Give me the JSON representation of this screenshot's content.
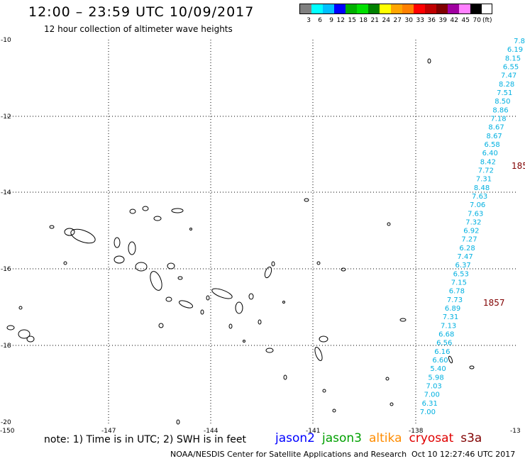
{
  "header": {
    "title": "12:00 – 23:59 UTC 10/09/2017",
    "subtitle": "12 hour collection of altimeter wave heights"
  },
  "legend": {
    "colors": [
      "#808080",
      "#00ffff",
      "#00bfff",
      "#0000ff",
      "#00b000",
      "#00e000",
      "#008000",
      "#ffff00",
      "#ffa500",
      "#ff8000",
      "#ff0000",
      "#c00000",
      "#800000",
      "#a000a0",
      "#ff80ff",
      "#000000"
    ],
    "ticks": [
      "3",
      "6",
      "9",
      "12",
      "15",
      "18",
      "21",
      "24",
      "27",
      "30",
      "33",
      "36",
      "39",
      "42",
      "45",
      "70"
    ],
    "unit": "(ft)"
  },
  "axes": {
    "lat_labels": [
      "-10",
      "-12",
      "-14",
      "-16",
      "-18",
      "-20"
    ],
    "lon_labels": [
      "-150",
      "-147",
      "-144",
      "-141",
      "-138",
      "-13"
    ]
  },
  "track": {
    "satellite": "jason2",
    "color": "#00b0e0",
    "values": [
      "7.8",
      "6.19",
      "8.15",
      "6.55",
      "7.47",
      "8.28",
      "7.51",
      "8.50",
      "8.86",
      "7.18",
      "8.67",
      "8.67",
      "6.58",
      "6.40",
      "8.42",
      "7.72",
      "7.31",
      "8.48",
      "7.63",
      "7.06",
      "7.63",
      "7.32",
      "6.92",
      "7.27",
      "6.28",
      "7.47",
      "6.37",
      "6.53",
      "7.15",
      "6.78",
      "7.73",
      "6.89",
      "7.31",
      "7.13",
      "6.68",
      "6.56",
      "6.16",
      "6.60",
      "5.40",
      "5.98",
      "7.03",
      "7.00",
      "6.31",
      "7.00"
    ]
  },
  "pass_labels": [
    {
      "text": "185",
      "color": "#800000"
    },
    {
      "text": "1857",
      "color": "#800000"
    }
  ],
  "footer": {
    "note": "note: 1) Time is in UTC; 2) SWH is in feet",
    "satellites": [
      {
        "name": "jason2",
        "color": "#0000ff"
      },
      {
        "name": "jason3",
        "color": "#00a000"
      },
      {
        "name": "altika",
        "color": "#ff8c00"
      },
      {
        "name": "cryosat",
        "color": "#e00000"
      },
      {
        "name": "s3a",
        "color": "#800000"
      }
    ],
    "credit": "NOAA/NESDIS Center for Satellite Applications and Research",
    "timestamp": "Oct 10 12:27:46 UTC 2017"
  }
}
